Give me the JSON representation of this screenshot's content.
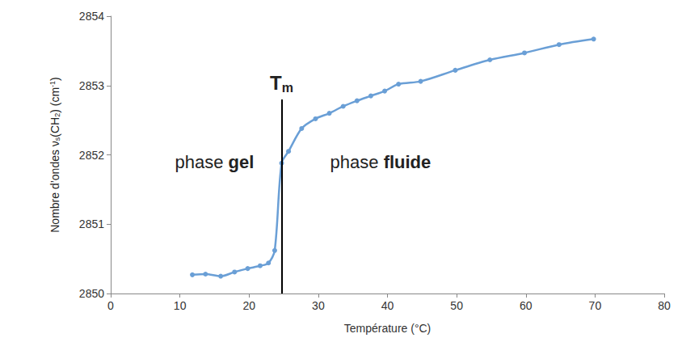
{
  "chart_data": {
    "type": "line",
    "x_label": "Température (°C)",
    "y_label": [
      {
        "text": "Nombre d’ondes ν"
      },
      {
        "text": "s",
        "style": "sub"
      },
      {
        "text": "(CH"
      },
      {
        "text": "2",
        "style": "sub"
      },
      {
        "text": ") (cm"
      },
      {
        "text": "-1",
        "style": "sup"
      },
      {
        "text": ")"
      }
    ],
    "series": [
      {
        "name": "νs(CH2)",
        "color": "#6a9fd6",
        "marker": "circle",
        "line_style": "solid",
        "x": [
          11.8,
          13.7,
          15.9,
          17.9,
          19.8,
          21.6,
          22.8,
          23.7,
          24.7,
          25.7,
          27.6,
          29.6,
          31.6,
          33.6,
          35.6,
          37.6,
          39.6,
          41.6,
          44.8,
          49.8,
          54.8,
          59.8,
          64.8,
          69.8
        ],
        "values": [
          2850.27,
          2850.28,
          2850.25,
          2850.31,
          2850.36,
          2850.4,
          2850.44,
          2850.62,
          2851.88,
          2852.05,
          2852.38,
          2852.52,
          2852.6,
          2852.7,
          2852.78,
          2852.85,
          2852.92,
          2853.02,
          2853.06,
          2853.22,
          2853.37,
          2853.47,
          2853.59,
          2853.67
        ]
      }
    ],
    "tm_line": {
      "x": 24.7,
      "y_start": 2850,
      "y_end": 2852.8,
      "color": "#000000",
      "label": [
        {
          "text": "T"
        },
        {
          "text": "m",
          "style": "sub"
        }
      ]
    },
    "annotations": [
      {
        "x": 15,
        "y": 2851.9,
        "parts": [
          {
            "text": "phase "
          },
          {
            "text": "gel",
            "style": "bold"
          }
        ]
      },
      {
        "x": 39,
        "y": 2851.9,
        "parts": [
          {
            "text": "phase "
          },
          {
            "text": "fluide",
            "style": "bold"
          }
        ]
      }
    ],
    "xlim": [
      0,
      80
    ],
    "xticks": [
      0,
      10,
      20,
      30,
      40,
      50,
      60,
      70,
      80
    ],
    "ylim": [
      2850,
      2854
    ],
    "yticks": [
      2850,
      2851,
      2852,
      2853,
      2854
    ],
    "grid": false
  }
}
